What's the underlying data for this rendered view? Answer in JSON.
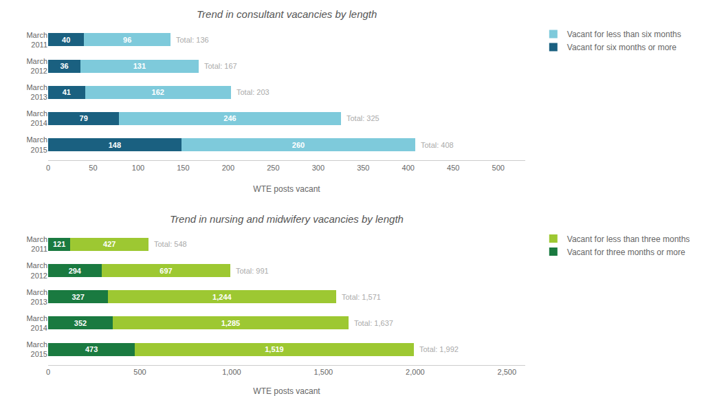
{
  "chart_data": [
    {
      "type": "bar",
      "orientation": "horizontal",
      "stacked": true,
      "data_labels": true,
      "grid": false,
      "legend": "right",
      "title": "Trend in consultant vacancies by length",
      "xlabel": "WTE posts vacant",
      "categories": [
        "March\n2011",
        "March\n2012",
        "March\n2013",
        "March\n2014",
        "March\n2015"
      ],
      "series": [
        {
          "name": "Vacant for six months or more",
          "color": "#1a6080",
          "values": [
            40,
            36,
            41,
            79,
            148
          ]
        },
        {
          "name": "Vacant for less than six months",
          "color": "#7ecadb",
          "values": [
            96,
            131,
            162,
            246,
            260
          ]
        }
      ],
      "annotations": [
        {
          "category": "March\n2011",
          "x": 136,
          "text": "Total: 136"
        },
        {
          "category": "March\n2012",
          "x": 167,
          "text": "Total: 167"
        },
        {
          "category": "March\n2013",
          "x": 203,
          "text": "Total: 203"
        },
        {
          "category": "March\n2014",
          "x": 325,
          "text": "Total: 325"
        },
        {
          "category": "March\n2015",
          "x": 408,
          "text": "Total: 408"
        }
      ],
      "xlim": [
        0,
        530
      ],
      "xticks": [
        0,
        50,
        100,
        150,
        200,
        250,
        300,
        350,
        400,
        450,
        500
      ]
    },
    {
      "type": "bar",
      "orientation": "horizontal",
      "stacked": true,
      "data_labels": true,
      "grid": false,
      "legend": "right",
      "title": "Trend in nursing and midwifery vacancies by length",
      "xlabel": "WTE posts vacant",
      "categories": [
        "March\n2011",
        "March\n2012",
        "March\n2013",
        "March\n2014",
        "March\n2015"
      ],
      "series": [
        {
          "name": "Vacant for three months or more",
          "color": "#1a7a40",
          "values": [
            121,
            294,
            327,
            352,
            473
          ]
        },
        {
          "name": "Vacant for less than three months",
          "color": "#9dc832",
          "values": [
            427,
            697,
            1244,
            1285,
            1519
          ],
          "value_labels": [
            "427",
            "697",
            "1,244",
            "1,285",
            "1,519"
          ]
        }
      ],
      "annotations": [
        {
          "category": "March\n2011",
          "x": 548,
          "text": "Total: 548"
        },
        {
          "category": "March\n2012",
          "x": 991,
          "text": "Total: 991"
        },
        {
          "category": "March\n2013",
          "x": 1571,
          "text": "Total: 1,571"
        },
        {
          "category": "March\n2014",
          "x": 1637,
          "text": "Total: 1,637"
        },
        {
          "category": "March\n2015",
          "x": 1992,
          "text": "Total: 1,992"
        }
      ],
      "xlim": [
        0,
        2600
      ],
      "xticks": [
        0,
        500,
        {
          "value": 1000,
          "label": "1,000"
        },
        {
          "value": 1500,
          "label": "1,500"
        },
        {
          "value": 2000,
          "label": "2,000"
        },
        {
          "value": 2500,
          "label": "2,500"
        }
      ]
    }
  ]
}
